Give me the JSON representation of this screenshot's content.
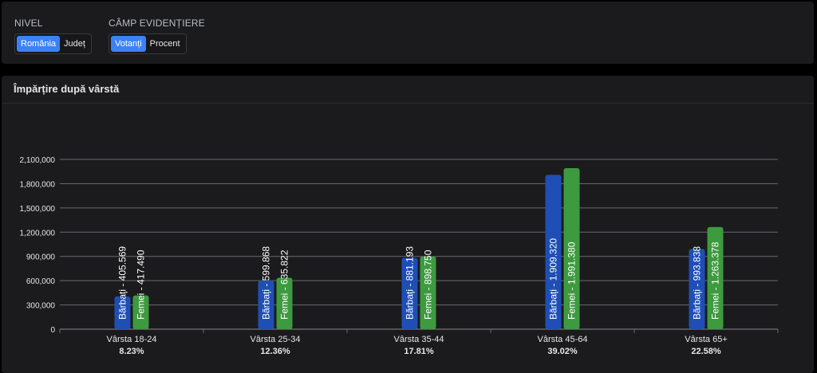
{
  "filters": {
    "nivel": {
      "label": "NIVEL",
      "options": [
        "România",
        "Județ"
      ],
      "selected": "România"
    },
    "camp": {
      "label": "CÂMP EVIDENȚIERE",
      "options": [
        "Votanți",
        "Procent"
      ],
      "selected": "Votanți"
    }
  },
  "colors": {
    "men": "#1f4fb5",
    "women": "#3d9a3f",
    "accent": "#3b82f6"
  },
  "chart_data": {
    "type": "bar",
    "title": "Împărțire după vârstă",
    "categories": [
      "Vârsta 18-24",
      "Vârsta 25-34",
      "Vârsta 35-44",
      "Vârsta 45-64",
      "Vârsta 65+"
    ],
    "percentages": [
      "8.23%",
      "12.36%",
      "17.81%",
      "39.02%",
      "22.58%"
    ],
    "series": [
      {
        "name": "Bărbați",
        "values": [
          405569,
          599868,
          881193,
          1909320,
          993838
        ],
        "labels": [
          "405.569",
          "599.868",
          "881.193",
          "1.909.320",
          "993.838"
        ]
      },
      {
        "name": "Femei",
        "values": [
          417490,
          635822,
          898750,
          1991380,
          1263378
        ],
        "labels": [
          "417.490",
          "635.822",
          "898.750",
          "1.991.380",
          "1.263.378"
        ]
      }
    ],
    "yticks": [
      "0",
      "300,000",
      "600,000",
      "900,000",
      "1,200,000",
      "1,500,000",
      "1,800,000",
      "2,100,000"
    ],
    "ylim": [
      0,
      2100000
    ],
    "grid": true
  }
}
